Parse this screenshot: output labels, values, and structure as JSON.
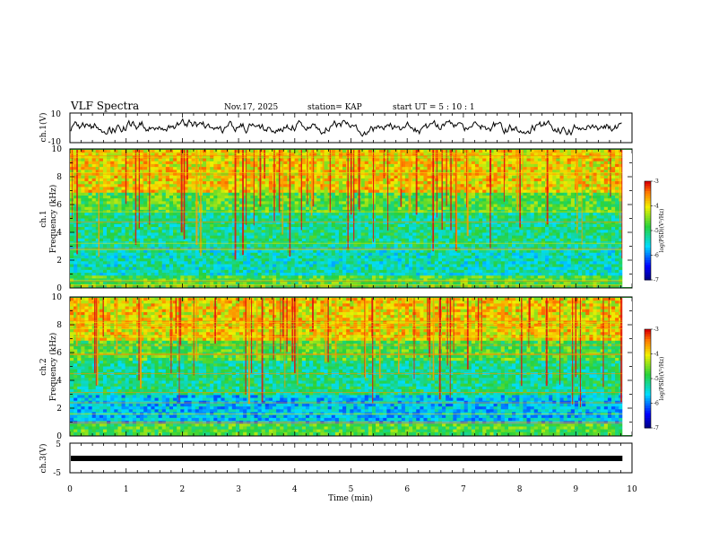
{
  "header": {
    "title": "VLF Spectra",
    "date": "Nov.17, 2025",
    "station": "station= KAP",
    "start": "start  UT =   5  : 10 : 1"
  },
  "colors": {
    "spectrogram_base": "#2ecc40",
    "trace": "#000000"
  },
  "chart_data": [
    {
      "type": "line",
      "name": "ch1-waveform",
      "ylabel": "ch.1(V)",
      "ylim": [
        -10,
        10
      ],
      "yticks": [
        "10",
        "-10"
      ],
      "xlim": [
        0,
        9.83
      ]
    },
    {
      "type": "heatmap",
      "name": "ch1-spectrogram",
      "ylabel_line1": "ch.1",
      "ylabel_line2": "Frequency (kHz)",
      "ylim": [
        0,
        10
      ],
      "yticks": [
        "0",
        "2",
        "4",
        "6",
        "8",
        "10"
      ],
      "xlim": [
        0,
        9.83
      ],
      "colorbar": {
        "label": "log(PSD)(V²/Hz)",
        "range": [
          -7,
          -3
        ],
        "ticks": [
          "-3",
          "-4",
          "-5",
          "-6",
          "-7"
        ]
      }
    },
    {
      "type": "heatmap",
      "name": "ch2-spectrogram",
      "ylabel_line1": "ch.2",
      "ylabel_line2": "Frequency (kHz)",
      "ylim": [
        0,
        10
      ],
      "yticks": [
        "0",
        "2",
        "4",
        "6",
        "8",
        "10"
      ],
      "xlim": [
        0,
        9.83
      ],
      "colorbar": {
        "label": "log(PSD)(V²/Hz)",
        "range": [
          -7,
          -3
        ],
        "ticks": [
          "-3",
          "-4",
          "-5",
          "-6",
          "-7"
        ]
      }
    },
    {
      "type": "line",
      "name": "ch3-waveform",
      "ylabel": "ch.3(V)",
      "ylim": [
        -5,
        5
      ],
      "yticks": [
        "5",
        "-5"
      ],
      "xlim": [
        0,
        9.83
      ],
      "level": 0
    }
  ],
  "xaxis": {
    "label": "Time (min)",
    "ticks": [
      "0",
      "1",
      "2",
      "3",
      "4",
      "5",
      "6",
      "7",
      "8",
      "9",
      "10"
    ],
    "range": [
      0,
      10
    ]
  }
}
